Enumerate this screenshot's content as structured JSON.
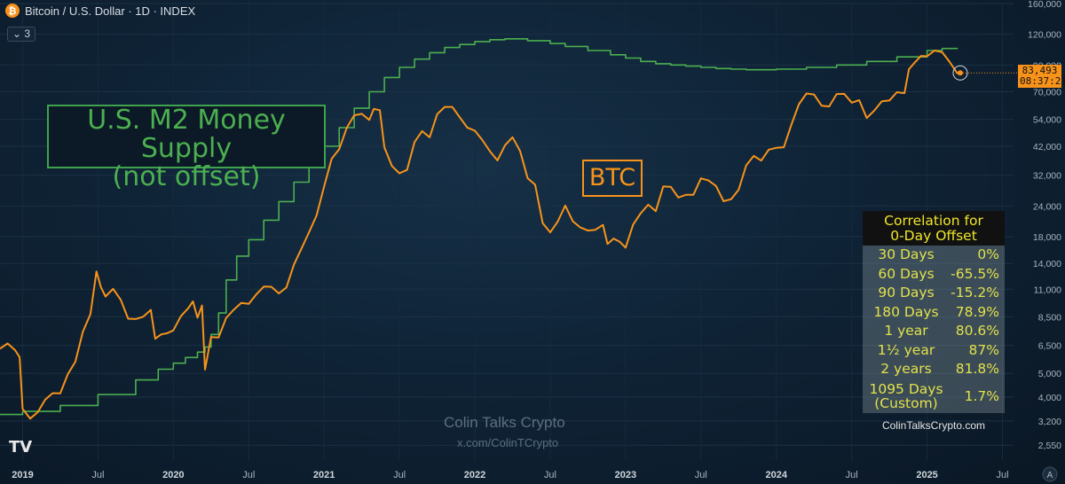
{
  "header": {
    "title": "Bitcoin / U.S. Dollar · 1D · INDEX",
    "indicator_count": "3",
    "icon": "bitcoin-icon"
  },
  "annotations": {
    "m2_line1": "U.S. M2 Money Supply",
    "m2_line2": "(not offset)",
    "btc_label": "BTC"
  },
  "watermark": {
    "line1": "Colin Talks Crypto",
    "line2": "x.com/ColinTCrypto",
    "logo": "TV"
  },
  "price_label": {
    "price": "83,493",
    "countdown": "08:37:21"
  },
  "correlation_table": {
    "title1": "Correlation for",
    "title2": "0-Day Offset",
    "rows": [
      {
        "period": "30 Days",
        "value": "0%"
      },
      {
        "period": "60 Days",
        "value": "-65.5%"
      },
      {
        "period": "90 Days",
        "value": "-15.2%"
      },
      {
        "period": "180 Days",
        "value": "78.9%"
      },
      {
        "period": "1 year",
        "value": "80.6%"
      },
      {
        "period": "1½ year",
        "value": "87%"
      },
      {
        "period": "2 years",
        "value": "81.8%"
      }
    ],
    "custom_line1": "1095 Days",
    "custom_line2": "(Custom)",
    "custom_value": "1.7%",
    "footer": "ColinTalksCrypto.com"
  },
  "colors": {
    "btc": "#f7931a",
    "m2": "#4caf50",
    "table_title": "#f0e62a",
    "table_text": "#e2e24a"
  },
  "chart_data": {
    "type": "line",
    "yscale": "log",
    "ylim": [
      2200,
      160000
    ],
    "xlim": [
      2018.85,
      2025.55
    ],
    "y_ticks": [
      {
        "value": 160000,
        "label": "160,000"
      },
      {
        "value": 120000,
        "label": "120,000"
      },
      {
        "value": 90000,
        "label": "90,000"
      },
      {
        "value": 70000,
        "label": "70,000"
      },
      {
        "value": 54000,
        "label": "54,000"
      },
      {
        "value": 42000,
        "label": "42,000"
      },
      {
        "value": 32000,
        "label": "32,000"
      },
      {
        "value": 24000,
        "label": "24,000"
      },
      {
        "value": 18000,
        "label": "18,000"
      },
      {
        "value": 14000,
        "label": "14,000"
      },
      {
        "value": 11000,
        "label": "11,000"
      },
      {
        "value": 8500,
        "label": "8,500"
      },
      {
        "value": 6500,
        "label": "6,500"
      },
      {
        "value": 5000,
        "label": "5,000"
      },
      {
        "value": 4000,
        "label": "4,000"
      },
      {
        "value": 3200,
        "label": "3,200"
      },
      {
        "value": 2550,
        "label": "2,550"
      }
    ],
    "x_ticks": [
      {
        "value": 2019.0,
        "label": "2019"
      },
      {
        "value": 2019.5,
        "label": "Jul"
      },
      {
        "value": 2020.0,
        "label": "2020"
      },
      {
        "value": 2020.5,
        "label": "Jul"
      },
      {
        "value": 2021.0,
        "label": "2021"
      },
      {
        "value": 2021.5,
        "label": "Jul"
      },
      {
        "value": 2022.0,
        "label": "2022"
      },
      {
        "value": 2022.5,
        "label": "Jul"
      },
      {
        "value": 2023.0,
        "label": "2023"
      },
      {
        "value": 2023.5,
        "label": "Jul"
      },
      {
        "value": 2024.0,
        "label": "2024"
      },
      {
        "value": 2024.5,
        "label": "Jul"
      },
      {
        "value": 2025.0,
        "label": "2025"
      },
      {
        "value": 2025.5,
        "label": "Jul"
      }
    ],
    "series": [
      {
        "name": "BTC",
        "color": "#f7931a",
        "x": [
          2018.85,
          2018.9,
          2018.95,
          2018.98,
          2019.0,
          2019.05,
          2019.1,
          2019.15,
          2019.2,
          2019.25,
          2019.3,
          2019.35,
          2019.4,
          2019.45,
          2019.49,
          2019.52,
          2019.55,
          2019.6,
          2019.65,
          2019.7,
          2019.75,
          2019.8,
          2019.85,
          2019.88,
          2019.92,
          2019.96,
          2020.0,
          2020.05,
          2020.1,
          2020.13,
          2020.16,
          2020.19,
          2020.21,
          2020.25,
          2020.3,
          2020.35,
          2020.4,
          2020.45,
          2020.5,
          2020.55,
          2020.6,
          2020.65,
          2020.7,
          2020.75,
          2020.8,
          2020.85,
          2020.9,
          2020.95,
          2021.0,
          2021.05,
          2021.1,
          2021.15,
          2021.2,
          2021.25,
          2021.3,
          2021.33,
          2021.37,
          2021.4,
          2021.45,
          2021.5,
          2021.55,
          2021.6,
          2021.65,
          2021.7,
          2021.75,
          2021.8,
          2021.85,
          2021.9,
          2021.95,
          2022.0,
          2022.05,
          2022.1,
          2022.15,
          2022.2,
          2022.25,
          2022.3,
          2022.35,
          2022.4,
          2022.45,
          2022.5,
          2022.55,
          2022.6,
          2022.65,
          2022.7,
          2022.75,
          2022.8,
          2022.85,
          2022.88,
          2022.92,
          2022.96,
          2023.0,
          2023.05,
          2023.1,
          2023.15,
          2023.2,
          2023.25,
          2023.3,
          2023.35,
          2023.4,
          2023.45,
          2023.5,
          2023.55,
          2023.6,
          2023.65,
          2023.7,
          2023.75,
          2023.8,
          2023.85,
          2023.9,
          2023.95,
          2024.0,
          2024.05,
          2024.1,
          2024.15,
          2024.2,
          2024.25,
          2024.3,
          2024.35,
          2024.4,
          2024.45,
          2024.5,
          2024.55,
          2024.6,
          2024.65,
          2024.7,
          2024.75,
          2024.8,
          2024.85,
          2024.88,
          2024.92,
          2024.96,
          2025.0,
          2025.05,
          2025.1,
          2025.15,
          2025.2,
          2025.22
        ],
        "y": [
          6300,
          6400,
          6000,
          5800,
          3700,
          3400,
          3500,
          3800,
          4000,
          4100,
          5100,
          5800,
          7500,
          8500,
          12500,
          11000,
          10500,
          11500,
          10200,
          8200,
          8000,
          8300,
          9200,
          7200,
          7400,
          7200,
          7200,
          8300,
          9300,
          10200,
          8700,
          9400,
          5000,
          6800,
          7000,
          8700,
          9400,
          9700,
          9300,
          10100,
          11200,
          11600,
          11000,
          11300,
          13500,
          15500,
          18500,
          22500,
          30000,
          38000,
          40000,
          48000,
          55000,
          58000,
          56000,
          61000,
          58000,
          40000,
          34000,
          33000,
          35000,
          45000,
          48000,
          44000,
          55000,
          61000,
          63000,
          57000,
          50000,
          47000,
          43000,
          40000,
          38000,
          44000,
          46000,
          39000,
          30000,
          29000,
          21000,
          19500,
          21000,
          23500,
          20000,
          19300,
          19500,
          20000,
          20500,
          16500,
          17000,
          16800,
          16500,
          21000,
          23000,
          24000,
          22000,
          28000,
          29000,
          27000,
          27500,
          26500,
          30000,
          29500,
          29000,
          26000,
          26500,
          28000,
          34000,
          37000,
          36500,
          42000,
          43000,
          42000,
          50000,
          60000,
          68000,
          70000,
          64000,
          62000,
          67000,
          66000,
          62000,
          66000,
          57000,
          60000,
          63000,
          62000,
          68000,
          70000,
          90000,
          95000,
          97000,
          94000,
          100000,
          102000,
          96000,
          86000,
          83500
        ]
      },
      {
        "name": "M2",
        "color": "#4caf50",
        "x": [
          2018.85,
          2019.0,
          2019.25,
          2019.5,
          2019.75,
          2019.9,
          2020.0,
          2020.08,
          2020.16,
          2020.21,
          2020.25,
          2020.3,
          2020.35,
          2020.42,
          2020.5,
          2020.6,
          2020.7,
          2020.8,
          2020.9,
          2021.0,
          2021.1,
          2021.2,
          2021.3,
          2021.4,
          2021.5,
          2021.6,
          2021.7,
          2021.8,
          2021.9,
          2022.0,
          2022.1,
          2022.2,
          2022.25,
          2022.35,
          2022.5,
          2022.6,
          2022.75,
          2022.9,
          2023.0,
          2023.1,
          2023.2,
          2023.3,
          2023.4,
          2023.5,
          2023.6,
          2023.7,
          2023.8,
          2023.9,
          2024.0,
          2024.2,
          2024.4,
          2024.6,
          2024.8,
          2025.0,
          2025.1,
          2025.2
        ],
        "y": [
          3400,
          3500,
          3700,
          4100,
          4700,
          5200,
          5500,
          5800,
          6100,
          6400,
          7200,
          8800,
          12000,
          15000,
          17500,
          21000,
          25000,
          30000,
          36000,
          42000,
          50000,
          60000,
          70000,
          80000,
          88000,
          95000,
          101000,
          106000,
          109000,
          112000,
          114000,
          115000,
          115000,
          113000,
          110000,
          107000,
          103000,
          99000,
          96000,
          93000,
          91000,
          90000,
          89000,
          88000,
          87000,
          86500,
          86000,
          86000,
          86500,
          88000,
          90000,
          93000,
          97000,
          103000,
          105000,
          104500
        ]
      }
    ]
  }
}
